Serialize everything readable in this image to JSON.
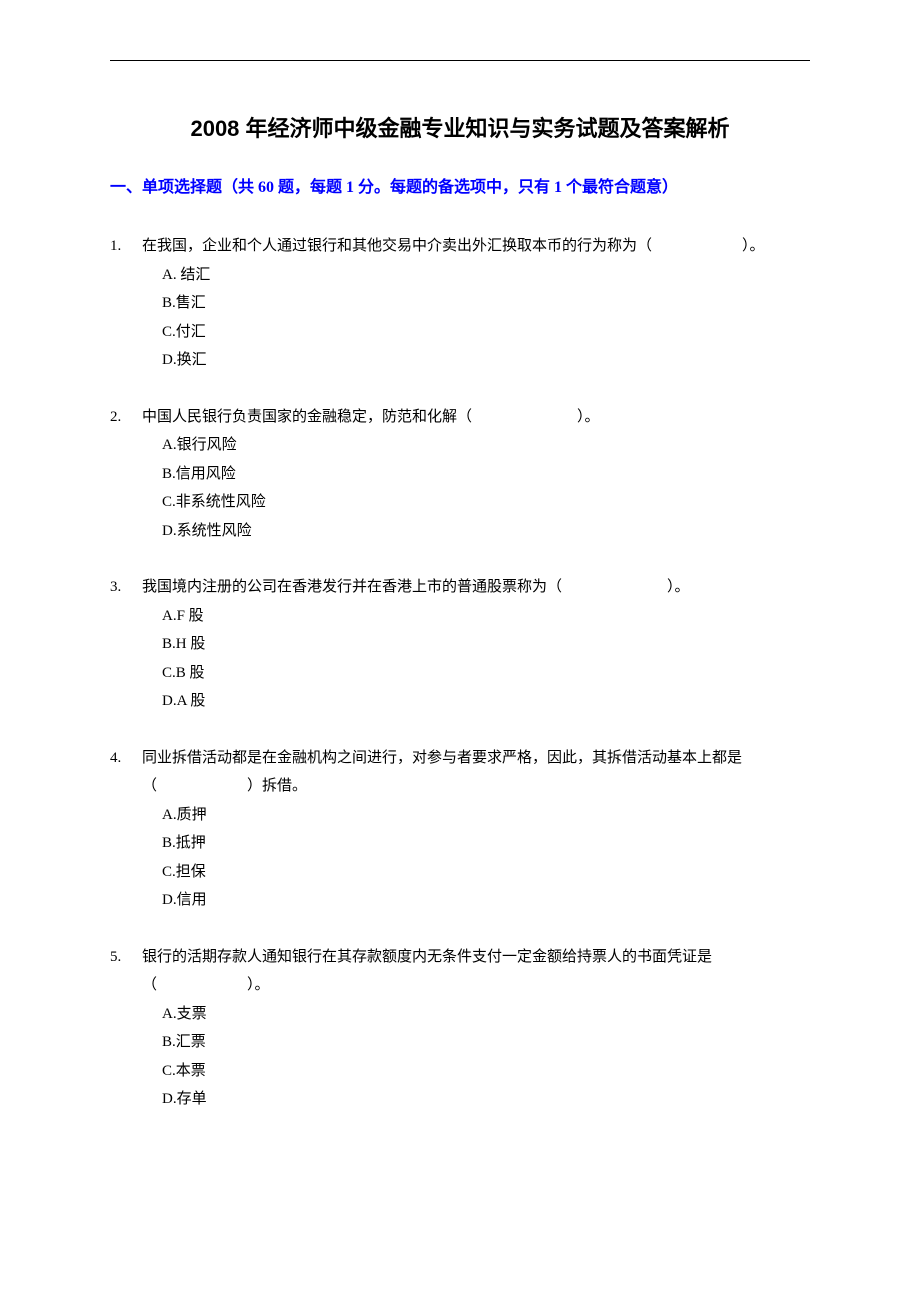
{
  "document": {
    "title": "2008 年经济师中级金融专业知识与实务试题及答案解析",
    "section_header": "一、单项选择题（共 60 题，每题 1 分。每题的备选项中，只有 1 个最符合题意）",
    "colors": {
      "title_color": "#000000",
      "section_header_color": "#0000ff",
      "text_color": "#000000",
      "background_color": "#ffffff",
      "line_color": "#000000"
    },
    "typography": {
      "title_fontsize": 22,
      "section_header_fontsize": 16,
      "body_fontsize": 15,
      "title_font": "SimHei",
      "body_font": "SimSun"
    }
  },
  "questions": [
    {
      "number": "1.",
      "text": "在我国，企业和个人通过银行和其他交易中介卖出外汇换取本币的行为称为（　　　　　　）。",
      "options": [
        "A. 结汇",
        "B.售汇",
        "C.付汇",
        "D.换汇"
      ]
    },
    {
      "number": "2.",
      "text": "中国人民银行负责国家的金融稳定，防范和化解（　　　　　　　）。",
      "options": [
        "A.银行风险",
        "B.信用风险",
        "C.非系统性风险",
        "D.系统性风险"
      ]
    },
    {
      "number": "3.",
      "text": "我国境内注册的公司在香港发行并在香港上市的普通股票称为（　　　　　　　）。",
      "options": [
        "A.F 股",
        "B.H 股",
        "C.B 股",
        "D.A 股"
      ]
    },
    {
      "number": "4.",
      "text": "同业拆借活动都是在金融机构之间进行，对参与者要求严格，因此，其拆借活动基本上都是（　　　　　　）拆借。",
      "options": [
        "A.质押",
        "B.抵押",
        "C.担保",
        "D.信用"
      ]
    },
    {
      "number": "5.",
      "text": "银行的活期存款人通知银行在其存款额度内无条件支付一定金额给持票人的书面凭证是（　　　　　　）。",
      "options": [
        "A.支票",
        "B.汇票",
        "C.本票",
        "D.存单"
      ]
    }
  ]
}
